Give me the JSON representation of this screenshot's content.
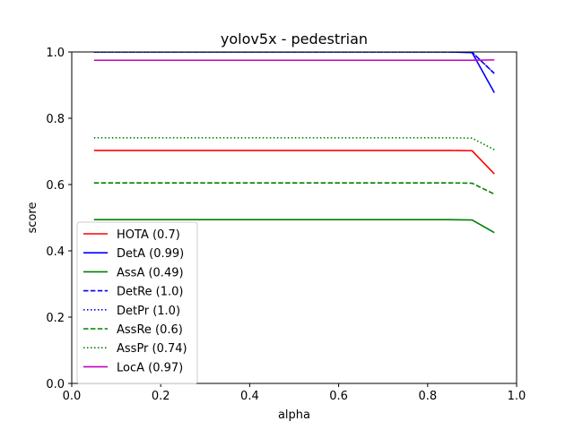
{
  "chart_data": {
    "type": "line",
    "title": "yolov5x - pedestrian",
    "xlabel": "alpha",
    "ylabel": "score",
    "xlim": [
      0.0,
      1.0
    ],
    "ylim": [
      0.0,
      1.0
    ],
    "xticks": [
      "0.0",
      "0.2",
      "0.4",
      "0.6",
      "0.8",
      "1.0"
    ],
    "yticks": [
      "0.0",
      "0.2",
      "0.4",
      "0.6",
      "0.8",
      "1.0"
    ],
    "grid": false,
    "legend_position": "lower-left",
    "x": [
      0.05,
      0.1,
      0.15,
      0.2,
      0.25,
      0.3,
      0.35,
      0.4,
      0.45,
      0.5,
      0.55,
      0.6,
      0.65,
      0.7,
      0.75,
      0.8,
      0.85,
      0.9,
      0.95
    ],
    "series": [
      {
        "name": "HOTA (0.7)",
        "color": "#ff0000",
        "dash": "solid",
        "values": [
          0.703,
          0.703,
          0.703,
          0.703,
          0.703,
          0.703,
          0.703,
          0.703,
          0.703,
          0.703,
          0.703,
          0.703,
          0.703,
          0.703,
          0.703,
          0.703,
          0.703,
          0.702,
          0.632
        ]
      },
      {
        "name": "DetA (0.99)",
        "color": "#0000ff",
        "dash": "solid",
        "values": [
          1.0,
          1.0,
          1.0,
          1.0,
          1.0,
          1.0,
          1.0,
          1.0,
          1.0,
          1.0,
          1.0,
          1.0,
          1.0,
          1.0,
          1.0,
          1.0,
          1.0,
          0.998,
          0.877
        ]
      },
      {
        "name": "AssA (0.49)",
        "color": "#008000",
        "dash": "solid",
        "values": [
          0.494,
          0.494,
          0.494,
          0.494,
          0.494,
          0.494,
          0.494,
          0.494,
          0.494,
          0.494,
          0.494,
          0.494,
          0.494,
          0.494,
          0.494,
          0.494,
          0.494,
          0.493,
          0.455
        ]
      },
      {
        "name": "DetRe (1.0)",
        "color": "#0000ff",
        "dash": "dashed",
        "values": [
          1.0,
          1.0,
          1.0,
          1.0,
          1.0,
          1.0,
          1.0,
          1.0,
          1.0,
          1.0,
          1.0,
          1.0,
          1.0,
          1.0,
          1.0,
          1.0,
          1.0,
          0.999,
          0.935
        ]
      },
      {
        "name": "DetPr (1.0)",
        "color": "#0000ff",
        "dash": "dotted",
        "values": [
          1.0,
          1.0,
          1.0,
          1.0,
          1.0,
          1.0,
          1.0,
          1.0,
          1.0,
          1.0,
          1.0,
          1.0,
          1.0,
          1.0,
          1.0,
          1.0,
          1.0,
          0.999,
          0.935
        ]
      },
      {
        "name": "AssRe (0.6)",
        "color": "#008000",
        "dash": "dashed",
        "values": [
          0.605,
          0.605,
          0.605,
          0.605,
          0.605,
          0.605,
          0.605,
          0.605,
          0.605,
          0.605,
          0.605,
          0.605,
          0.605,
          0.605,
          0.605,
          0.605,
          0.605,
          0.604,
          0.571
        ]
      },
      {
        "name": "AssPr (0.74)",
        "color": "#008000",
        "dash": "dotted",
        "values": [
          0.741,
          0.741,
          0.741,
          0.741,
          0.741,
          0.741,
          0.741,
          0.741,
          0.741,
          0.741,
          0.741,
          0.741,
          0.741,
          0.741,
          0.741,
          0.741,
          0.741,
          0.74,
          0.705
        ]
      },
      {
        "name": "LocA (0.97)",
        "color": "#bf00bf",
        "dash": "solid",
        "values": [
          0.975,
          0.975,
          0.975,
          0.975,
          0.975,
          0.975,
          0.975,
          0.975,
          0.975,
          0.975,
          0.975,
          0.975,
          0.975,
          0.975,
          0.975,
          0.975,
          0.975,
          0.975,
          0.976
        ]
      }
    ]
  }
}
